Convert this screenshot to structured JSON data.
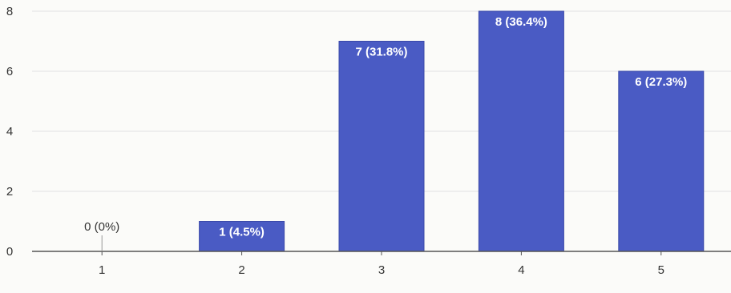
{
  "chart_data": {
    "type": "bar",
    "categories": [
      "1",
      "2",
      "3",
      "4",
      "5"
    ],
    "values": [
      0,
      1,
      7,
      8,
      6
    ],
    "data_labels": [
      "0 (0%)",
      "1 (4.5%)",
      "7 (31.8%)",
      "8 (36.4%)",
      "6 (27.3%)"
    ],
    "y_ticks": [
      "0",
      "2",
      "4",
      "6",
      "8"
    ],
    "ylim": [
      0,
      8
    ],
    "title": "",
    "xlabel": "",
    "ylabel": "",
    "grid": true,
    "colors": {
      "bar": "#4a5bc4",
      "bar_edge": "#3a48a8",
      "grid": "#e2e2e2",
      "axis": "#555555"
    }
  }
}
